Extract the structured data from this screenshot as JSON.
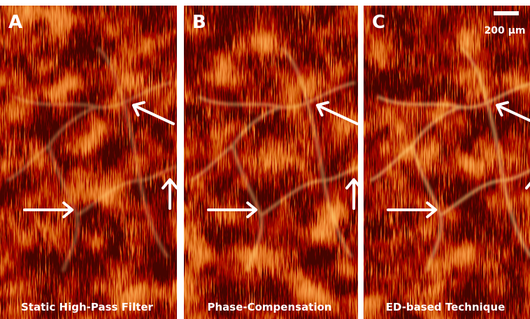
{
  "panels": [
    {
      "label": "A",
      "caption": "Static High-Pass Filter"
    },
    {
      "label": "B",
      "caption": "Phase-Compensation"
    },
    {
      "label": "C",
      "caption": "ED-based Technique"
    }
  ],
  "scale_bar": "200 µm"
}
